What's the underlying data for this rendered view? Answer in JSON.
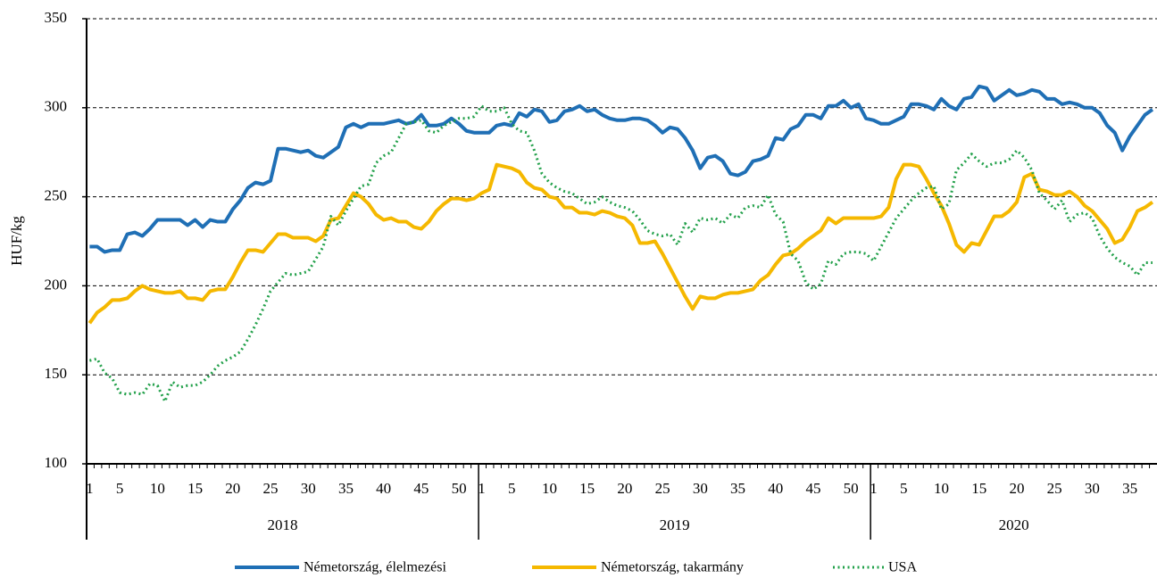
{
  "chart_data": {
    "type": "line",
    "ylabel": "HUF/kg",
    "categories": [
      1,
      null,
      null,
      null,
      5,
      null,
      null,
      null,
      null,
      10,
      null,
      null,
      null,
      null,
      15,
      null,
      null,
      null,
      null,
      20,
      null,
      null,
      null,
      null,
      25,
      null,
      null,
      null,
      null,
      30,
      null,
      null,
      null,
      null,
      35,
      null,
      null,
      null,
      null,
      40,
      null,
      null,
      null,
      null,
      45,
      null,
      null,
      null,
      null,
      50,
      null,
      null,
      1,
      null,
      null,
      null,
      5,
      null,
      null,
      null,
      null,
      10,
      null,
      null,
      null,
      null,
      15,
      null,
      null,
      null,
      null,
      20,
      null,
      null,
      null,
      null,
      25,
      null,
      null,
      null,
      null,
      30,
      null,
      null,
      null,
      null,
      35,
      null,
      null,
      null,
      null,
      40,
      null,
      null,
      null,
      null,
      45,
      null,
      null,
      null,
      null,
      50,
      null,
      null,
      1,
      null,
      null,
      null,
      5,
      null,
      null,
      null,
      null,
      10,
      null,
      null,
      null,
      null,
      15,
      null,
      null,
      null,
      null,
      20,
      null,
      null,
      null,
      null,
      25,
      null,
      null,
      null,
      null,
      30,
      null,
      null,
      null,
      null,
      35,
      null,
      null,
      null
    ],
    "category_groups": [
      {
        "name": "2018",
        "size": 52
      },
      {
        "name": "2019",
        "size": 52
      },
      {
        "name": "2020",
        "size": 38
      }
    ],
    "ylim": [
      100,
      350
    ],
    "yticks": [
      100,
      150,
      200,
      250,
      300,
      350
    ],
    "grid": true,
    "series": [
      {
        "name": "Németország, élelmezési",
        "color": "#1f6fb5",
        "style": "solid",
        "values": [
          222,
          222,
          219,
          220,
          220,
          229,
          230,
          228,
          232,
          237,
          237,
          237,
          237,
          234,
          237,
          233,
          237,
          236,
          236,
          243,
          248,
          255,
          258,
          257,
          259,
          277,
          277,
          276,
          275,
          276,
          273,
          272,
          275,
          278,
          289,
          291,
          289,
          291,
          291,
          291,
          292,
          293,
          291,
          292,
          296,
          290,
          290,
          291,
          294,
          291,
          287,
          286,
          286,
          286,
          290,
          291,
          290,
          297,
          295,
          299,
          298,
          292,
          293,
          298,
          299,
          301,
          298,
          299,
          296,
          294,
          293,
          293,
          294,
          294,
          293,
          290,
          286,
          289,
          288,
          283,
          276,
          266,
          272,
          273,
          270,
          263,
          262,
          264,
          270,
          271,
          273,
          283,
          282,
          288,
          290,
          296,
          296,
          294,
          301,
          301,
          304,
          300,
          302,
          294,
          293,
          291,
          291,
          293,
          295,
          302,
          302,
          301,
          299,
          305,
          301,
          299,
          305,
          306,
          312,
          311,
          304,
          307,
          310,
          307,
          308,
          310,
          309,
          305,
          305,
          302,
          303,
          302,
          300,
          300,
          297,
          290,
          286,
          276,
          284,
          290,
          296,
          299
        ]
      },
      {
        "name": "Németország, takarmány",
        "color": "#f5b800",
        "style": "solid",
        "values": [
          179,
          185,
          188,
          192,
          192,
          193,
          197,
          200,
          198,
          197,
          196,
          196,
          197,
          193,
          193,
          192,
          197,
          198,
          198,
          205,
          213,
          220,
          220,
          219,
          224,
          229,
          229,
          227,
          227,
          227,
          225,
          228,
          237,
          238,
          245,
          252,
          250,
          246,
          240,
          237,
          238,
          236,
          236,
          233,
          232,
          236,
          242,
          246,
          249,
          249,
          248,
          249,
          252,
          254,
          268,
          267,
          266,
          264,
          258,
          255,
          254,
          250,
          249,
          244,
          244,
          241,
          241,
          240,
          242,
          241,
          239,
          238,
          234,
          224,
          224,
          225,
          218,
          210,
          202,
          194,
          187,
          194,
          193,
          193,
          195,
          196,
          196,
          197,
          198,
          203,
          206,
          212,
          217,
          218,
          221,
          225,
          228,
          231,
          238,
          235,
          238,
          238,
          238,
          238,
          238,
          239,
          244,
          260,
          268,
          268,
          267,
          260,
          252,
          245,
          235,
          223,
          219,
          224,
          223,
          231,
          239,
          239,
          242,
          247,
          261,
          263,
          254,
          253,
          251,
          251,
          253,
          250,
          245,
          242,
          237,
          232,
          224,
          226,
          233,
          242,
          244,
          247
        ]
      },
      {
        "name": "USA",
        "color": "#22a04a",
        "style": "dotted",
        "values": [
          158,
          159,
          151,
          148,
          140,
          139,
          140,
          139,
          145,
          144,
          135,
          146,
          143,
          144,
          144,
          146,
          150,
          155,
          158,
          160,
          163,
          170,
          178,
          187,
          197,
          202,
          207,
          206,
          207,
          208,
          215,
          222,
          239,
          234,
          242,
          249,
          256,
          257,
          269,
          273,
          275,
          283,
          291,
          292,
          293,
          287,
          286,
          290,
          292,
          294,
          294,
          295,
          301,
          298,
          298,
          300,
          291,
          287,
          286,
          276,
          263,
          258,
          255,
          253,
          252,
          249,
          246,
          247,
          250,
          247,
          245,
          244,
          242,
          237,
          231,
          229,
          228,
          229,
          223,
          235,
          230,
          238,
          237,
          238,
          235,
          240,
          238,
          244,
          245,
          244,
          251,
          240,
          236,
          218,
          214,
          202,
          198,
          201,
          214,
          212,
          218,
          219,
          219,
          218,
          214,
          222,
          230,
          238,
          243,
          248,
          252,
          255,
          256,
          243,
          246,
          265,
          269,
          274,
          270,
          267,
          269,
          269,
          271,
          276,
          272,
          265,
          252,
          248,
          243,
          248,
          236,
          240,
          241,
          238,
          228,
          221,
          216,
          213,
          211,
          206,
          213,
          213
        ]
      }
    ]
  }
}
